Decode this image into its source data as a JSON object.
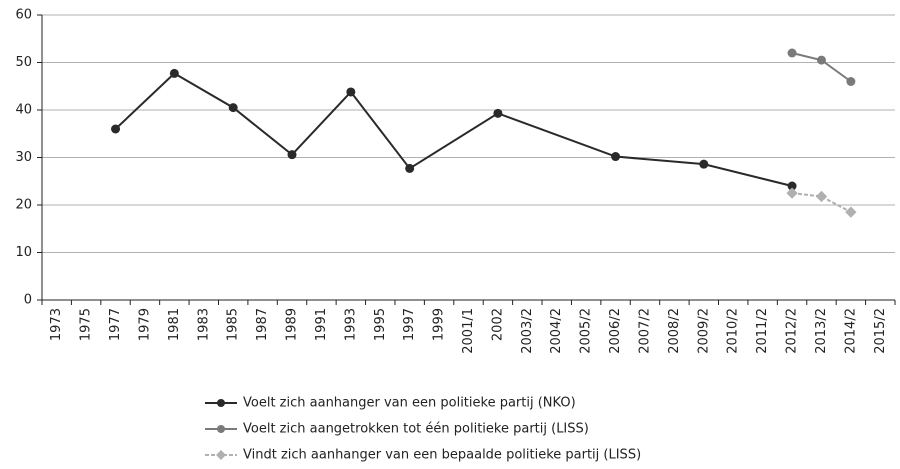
{
  "chart_data": {
    "type": "line",
    "categories": [
      "1973",
      "1975",
      "1977",
      "1979",
      "1981",
      "1983",
      "1985",
      "1987",
      "1989",
      "1991",
      "1993",
      "1995",
      "1997",
      "1999",
      "2001/1",
      "2002",
      "2003/2",
      "2004/2",
      "2005/2",
      "2006/2",
      "2007/2",
      "2008/2",
      "2009/2",
      "2010/2",
      "2011/2",
      "2012/2",
      "2013/2",
      "2014/2",
      "2015/2"
    ],
    "series": [
      {
        "name": "Voelt zich aanhanger van een politieke partij (NKO)",
        "color": "#2a2a2a",
        "x": [
          "1977",
          "1981",
          "1985",
          "1989",
          "1993",
          "1997",
          "2002",
          "2006/2",
          "2009/2",
          "2012/2"
        ],
        "values": [
          36,
          47.7,
          40.5,
          30.6,
          43.8,
          27.7,
          39.3,
          30.2,
          28.6,
          24
        ]
      },
      {
        "name": "Voelt zich aangetrokken tot één politieke partij (LISS)",
        "color": "#7a7a7a",
        "x": [
          "2012/2",
          "2013/2",
          "2014/2"
        ],
        "values": [
          52,
          50.5,
          46
        ]
      },
      {
        "name": "Vindt zich aanhanger van een bepaalde politieke partij (LISS)",
        "color": "#b0b0b0",
        "x": [
          "2012/2",
          "2013/2",
          "2014/2"
        ],
        "values": [
          22.5,
          21.8,
          18.5
        ]
      }
    ],
    "ylim": [
      0,
      60
    ],
    "yticks": [
      0,
      10,
      20,
      30,
      40,
      50,
      60
    ],
    "grid": true
  }
}
